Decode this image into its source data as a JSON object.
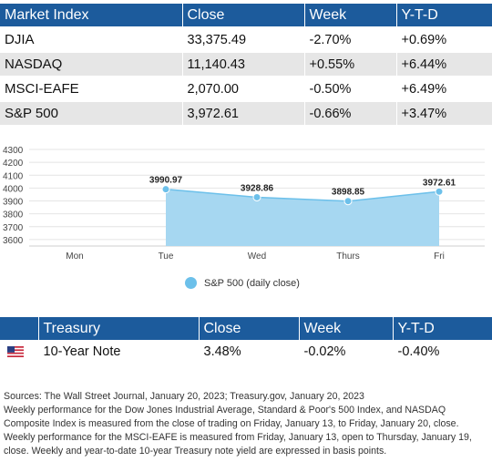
{
  "market_table": {
    "headers": [
      "Market Index",
      "Close",
      "Week",
      "Y-T-D"
    ],
    "rows": [
      [
        "DJIA",
        "33,375.49",
        "-2.70%",
        "+0.69%"
      ],
      [
        "NASDAQ",
        "11,140.43",
        "+0.55%",
        "+6.44%"
      ],
      [
        "MSCI-EAFE",
        "2,070.00",
        "-0.50%",
        "+6.49%"
      ],
      [
        "S&P 500",
        "3,972.61",
        "-0.66%",
        "+3.47%"
      ]
    ]
  },
  "chart_data": {
    "type": "area",
    "categories": [
      "Mon",
      "Tue",
      "Wed",
      "Thurs",
      "Fri"
    ],
    "series": [
      {
        "name": "S&P 500 (daily close)",
        "values": [
          null,
          3990.97,
          3928.86,
          3898.85,
          3972.61
        ]
      }
    ],
    "data_labels": [
      "3990.97",
      "3928.86",
      "3898.85",
      "3972.61"
    ],
    "y_ticks": [
      "3600",
      "3700",
      "3800",
      "3900",
      "4000",
      "4100",
      "4200",
      "4300"
    ],
    "ylim": [
      3550,
      4300
    ],
    "grid": true,
    "legend": "bottom-center",
    "color": "#6cc0ea"
  },
  "legend_label": "S&P 500 (daily close)",
  "treasury_table": {
    "headers": [
      "",
      "Treasury",
      "Close",
      "Week",
      "Y-T-D"
    ],
    "rows": [
      [
        "10-Year Note",
        "3.48%",
        "-0.02%",
        "-0.40%"
      ]
    ],
    "flag_icon": "us-flag-icon"
  },
  "sources": {
    "line1": "Sources: The Wall Street Journal, January 20, 2023; Treasury.gov, January 20, 2023",
    "line2": "Weekly performance for the Dow Jones Industrial Average, Standard & Poor's 500 Index, and NASDAQ",
    "line3": "Composite Index is measured from the close of trading on Friday, January 13, to Friday, January 20, close.",
    "line4": "Weekly performance for the MSCI-EAFE is measured from Friday, January 13, open to Thursday, January 19,",
    "line5": "close. Weekly and year-to-date 10-year Treasury note yield are expressed in basis points."
  },
  "colors": {
    "header_bg": "#1c5b9c",
    "stripe": "#e6e6e6",
    "area_fill": "#a6d7f1",
    "area_line": "#6cc0ea"
  }
}
